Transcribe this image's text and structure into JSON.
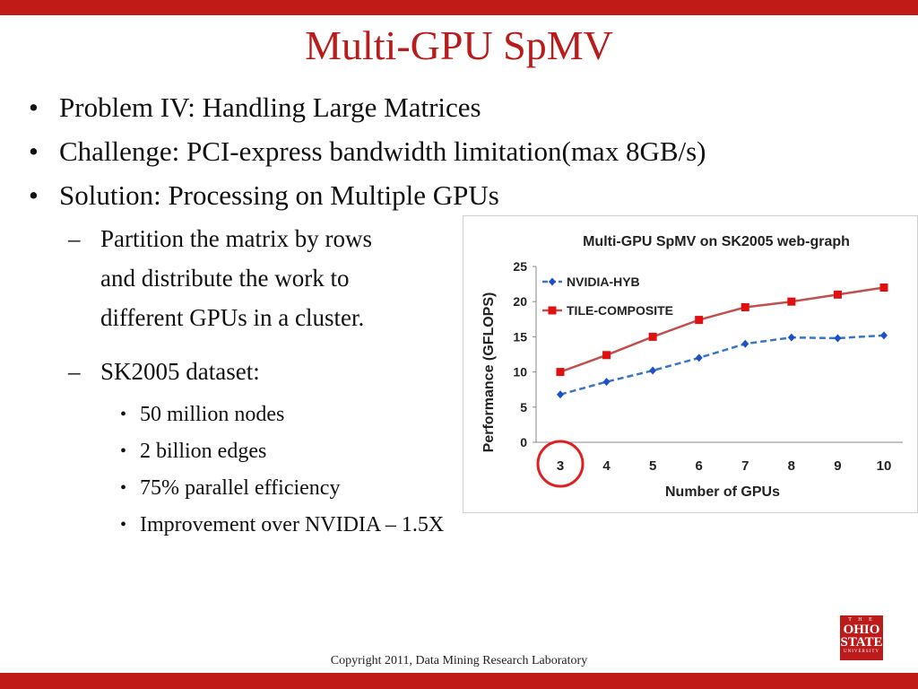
{
  "slide": {
    "title": "Multi-GPU SpMV",
    "bullets": [
      "Problem IV: Handling Large Matrices",
      "Challenge: PCI-express bandwidth limitation(max 8GB/s)",
      "Solution: Processing on Multiple GPUs"
    ],
    "sub_bullets": [
      [
        "Partition the matrix by rows",
        "and distribute the work to",
        "different GPUs in a cluster."
      ],
      [
        "SK2005 dataset:"
      ]
    ],
    "sub_sub_bullets": [
      "50 million nodes",
      "2 billion edges",
      "75% parallel efficiency",
      "Improvement over NVIDIA – 1.5X"
    ],
    "bullet_glyph": "•",
    "dash_glyph": "–",
    "footer": "Copyright 2011, Data Mining Research Laboratory",
    "logo": {
      "line1": "T H E",
      "line2": "OHIO",
      "line3": "STATE",
      "line4": "UNIVERSITY"
    },
    "colors": {
      "accent": "#c11b17",
      "series_nvidia": "#3a75c4",
      "series_tile": "#c0504d",
      "highlight_circle": "#e02020"
    }
  },
  "chart_data": {
    "type": "line",
    "title": "Multi-GPU SpMV on SK2005 web-graph",
    "xlabel": "Number of GPUs",
    "ylabel": "Performance (GFLOPS)",
    "categories": [
      "3",
      "4",
      "5",
      "6",
      "7",
      "8",
      "9",
      "10"
    ],
    "ylim": [
      0,
      25
    ],
    "yticks": [
      "0",
      "5",
      "10",
      "15",
      "20",
      "25"
    ],
    "grid": false,
    "legend": "top-left",
    "highlighted_category": "3",
    "series": [
      {
        "name": "NVIDIA-HYB",
        "values": [
          6.8,
          8.6,
          10.2,
          12.0,
          14.0,
          14.9,
          14.8,
          15.2
        ],
        "color": "#3a75c4",
        "marker": "diamond",
        "line": "dashed"
      },
      {
        "name": "TILE-COMPOSITE",
        "values": [
          10.0,
          12.4,
          15.0,
          17.4,
          19.2,
          20.0,
          21.0,
          22.0
        ],
        "color": "#c0504d",
        "marker": "square",
        "line": "solid"
      }
    ]
  }
}
